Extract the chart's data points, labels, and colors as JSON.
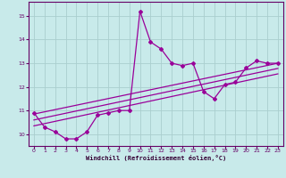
{
  "background_color": "#c8eaea",
  "grid_color": "#aacece",
  "line_color": "#990099",
  "xlabel": "Windchill (Refroidissement éolien,°C)",
  "xlim": [
    -0.5,
    23.5
  ],
  "ylim": [
    9.5,
    15.6
  ],
  "yticks": [
    10,
    11,
    12,
    13,
    14,
    15
  ],
  "xticks": [
    0,
    1,
    2,
    3,
    4,
    5,
    6,
    7,
    8,
    9,
    10,
    11,
    12,
    13,
    14,
    15,
    16,
    17,
    18,
    19,
    20,
    21,
    22,
    23
  ],
  "line1_x": [
    0,
    1,
    2,
    3,
    4,
    5,
    6,
    7,
    8,
    9,
    10,
    11,
    12,
    13,
    14,
    15,
    16,
    17,
    18,
    19,
    20,
    21,
    22,
    23
  ],
  "line1_y": [
    10.9,
    10.3,
    10.1,
    9.8,
    9.8,
    10.1,
    10.8,
    10.9,
    11.0,
    11.0,
    15.2,
    13.9,
    13.6,
    13.0,
    12.9,
    13.0,
    11.8,
    11.5,
    12.1,
    12.2,
    12.8,
    13.1,
    13.0,
    13.0
  ],
  "line3_x": [
    0,
    23
  ],
  "line3_y": [
    10.85,
    13.0
  ],
  "line4_x": [
    0,
    23
  ],
  "line4_y": [
    10.35,
    12.55
  ],
  "line5_x": [
    0,
    23
  ],
  "line5_y": [
    10.6,
    12.78
  ]
}
